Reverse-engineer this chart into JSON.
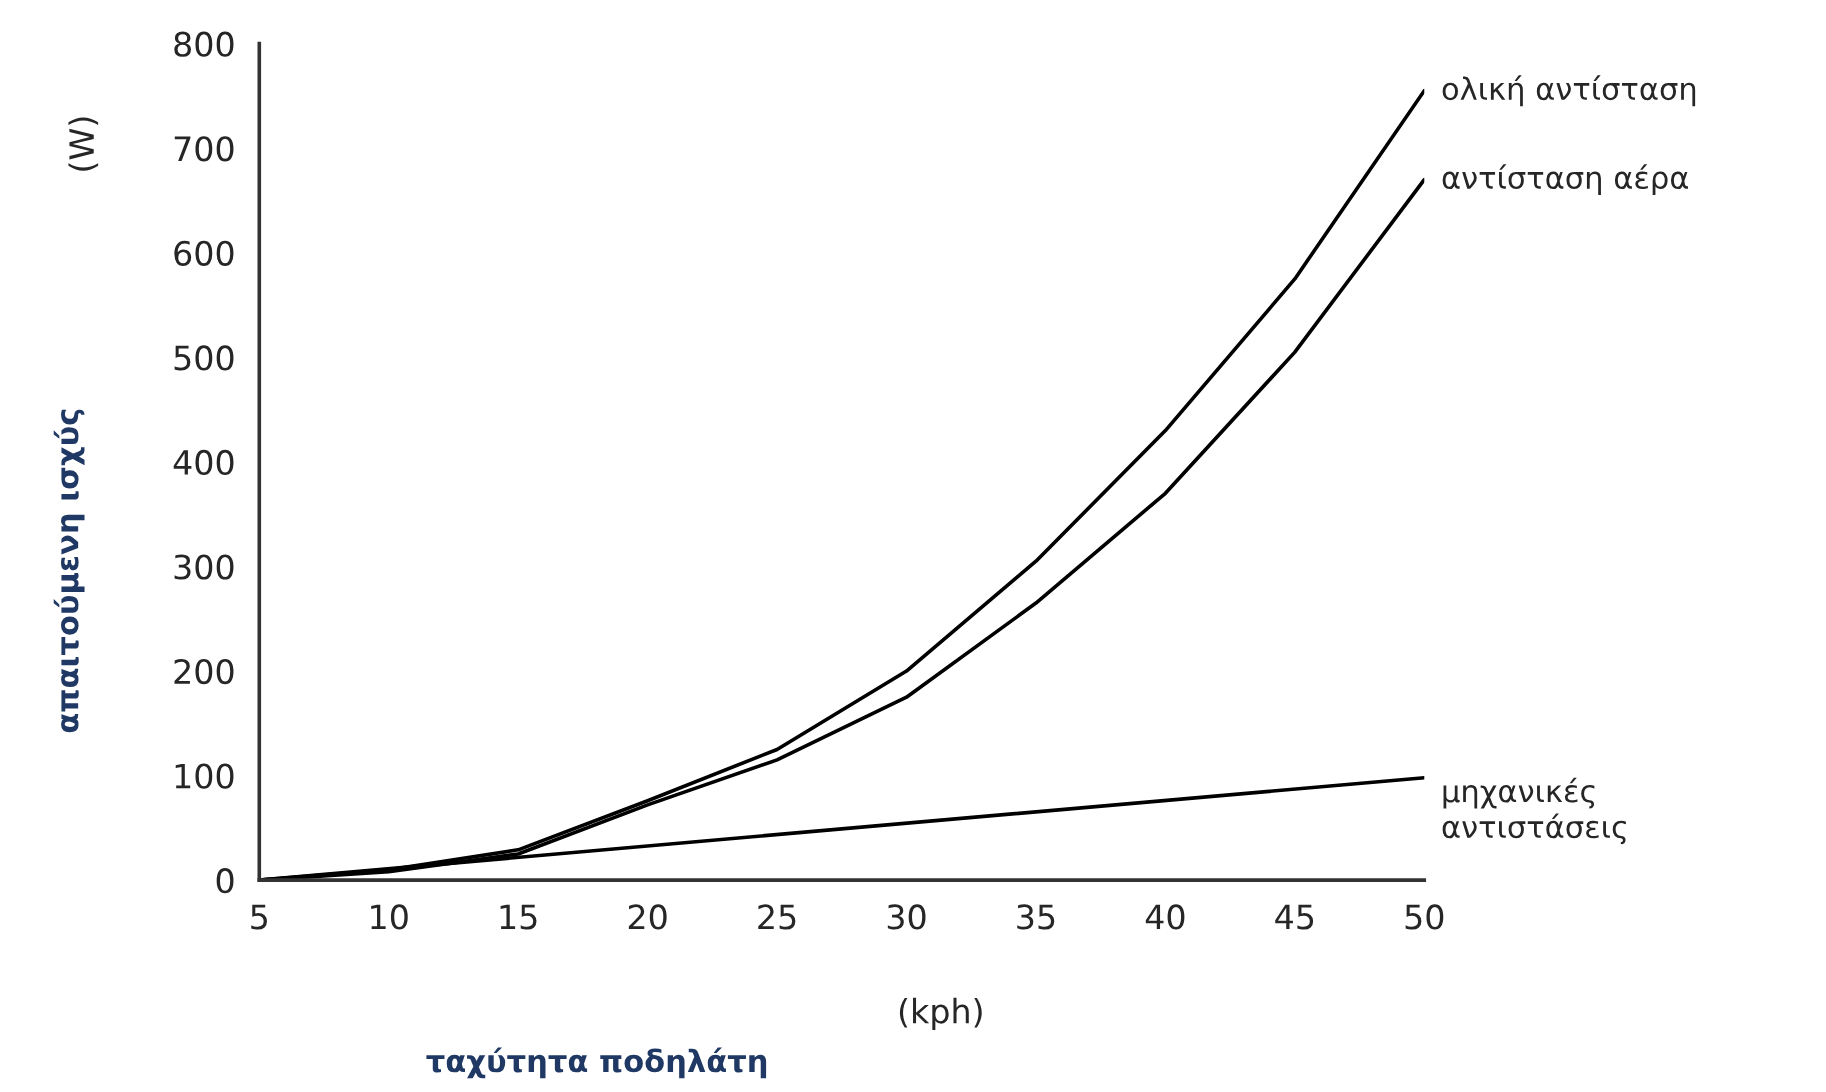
{
  "chart_data": {
    "type": "line",
    "xlabel": "ταχύτητα ποδηλάτη",
    "ylabel": "απαιτούμενη ισχύς",
    "annotations": [
      "(W)",
      "(kph)"
    ],
    "x": [
      5,
      10,
      15,
      20,
      25,
      30,
      35,
      40,
      45,
      50
    ],
    "series": [
      {
        "name": "ολική αντίσταση",
        "color": "#000000",
        "values": [
          0,
          10,
          29,
          76,
          125,
          200,
          305,
          430,
          575,
          755
        ]
      },
      {
        "name": "αντίσταση αέρα",
        "color": "#000000",
        "values": [
          0,
          8,
          25,
          72,
          115,
          175,
          265,
          370,
          505,
          670
        ]
      },
      {
        "name": "μηχανικές\nαντιστάσεις",
        "color": "#000000",
        "x": [
          5,
          50
        ],
        "values": [
          0,
          98
        ]
      }
    ],
    "xlim": [
      5,
      50
    ],
    "ylim": [
      0,
      800
    ],
    "xticks": [
      5,
      10,
      15,
      20,
      25,
      30,
      35,
      40,
      45,
      50
    ],
    "yticks": [
      0,
      100,
      200,
      300,
      400,
      500,
      600,
      700,
      800
    ],
    "grid": false,
    "legend": false,
    "marker": "none",
    "line_style": "solid"
  }
}
